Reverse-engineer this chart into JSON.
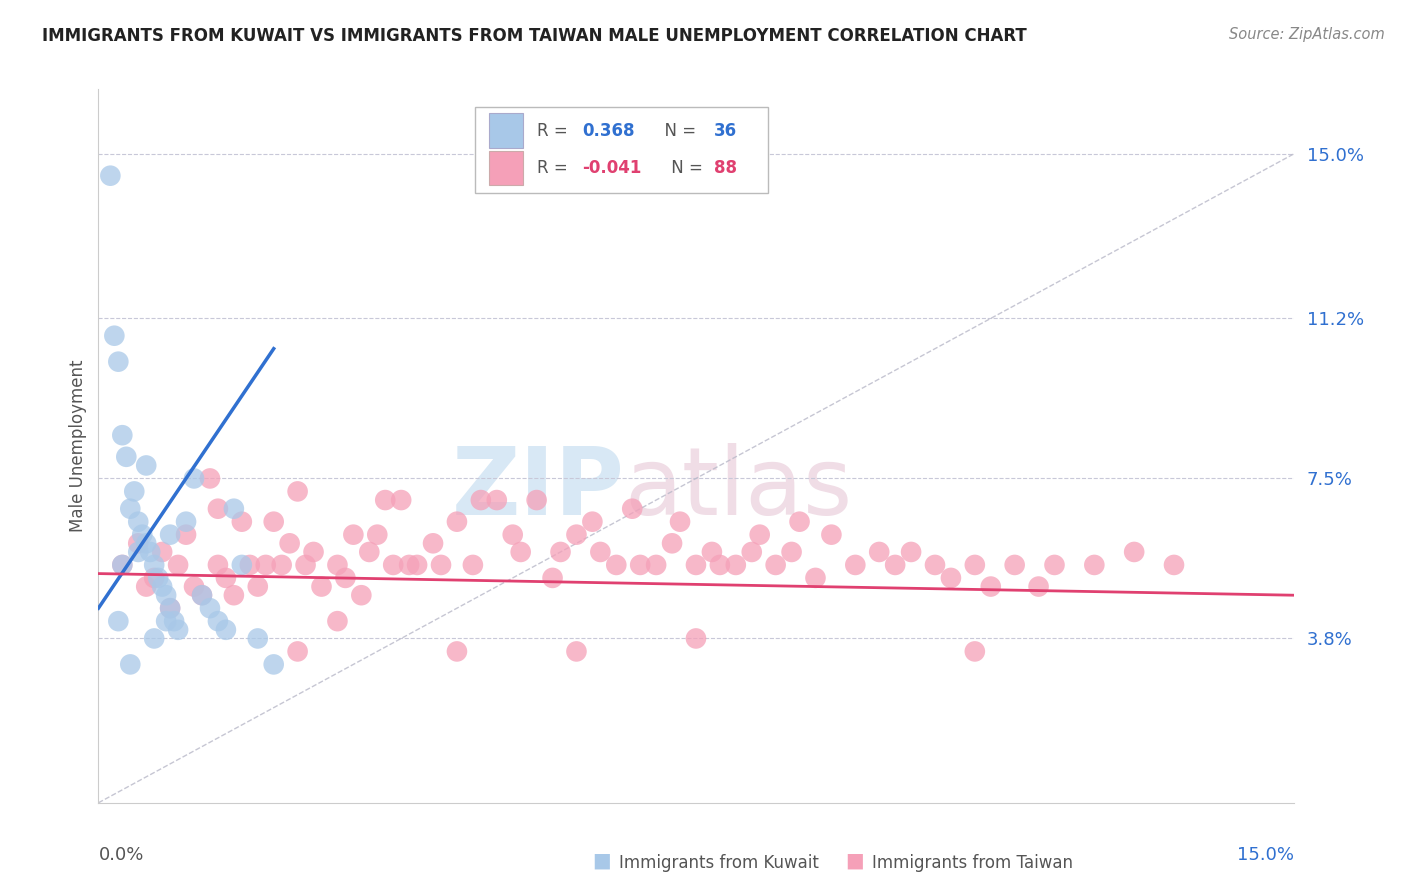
{
  "title": "IMMIGRANTS FROM KUWAIT VS IMMIGRANTS FROM TAIWAN MALE UNEMPLOYMENT CORRELATION CHART",
  "source": "Source: ZipAtlas.com",
  "ylabel": "Male Unemployment",
  "y_tick_values": [
    3.8,
    7.5,
    11.2,
    15.0
  ],
  "x_range": [
    0,
    15
  ],
  "y_range": [
    0,
    16.5
  ],
  "legend_r_kuwait": "0.368",
  "legend_n_kuwait": "36",
  "legend_r_taiwan": "-0.041",
  "legend_n_taiwan": "88",
  "kuwait_color": "#a8c8e8",
  "taiwan_color": "#f5a0b8",
  "kuwait_line_color": "#3070d0",
  "taiwan_line_color": "#e04070",
  "diag_color": "#b8b8c8",
  "background_color": "#ffffff",
  "grid_color": "#c8c8d8",
  "kuwait_scatter_x": [
    0.15,
    0.2,
    0.25,
    0.3,
    0.35,
    0.4,
    0.45,
    0.5,
    0.55,
    0.6,
    0.65,
    0.7,
    0.75,
    0.8,
    0.85,
    0.9,
    0.95,
    1.0,
    1.1,
    1.2,
    1.3,
    1.4,
    1.5,
    1.6,
    1.7,
    1.8,
    2.0,
    2.2,
    0.3,
    0.5,
    0.6,
    0.7,
    0.85,
    0.9,
    0.25,
    0.4
  ],
  "kuwait_scatter_y": [
    14.5,
    10.8,
    10.2,
    8.5,
    8.0,
    6.8,
    7.2,
    6.5,
    6.2,
    6.0,
    5.8,
    5.5,
    5.2,
    5.0,
    4.8,
    4.5,
    4.2,
    4.0,
    6.5,
    7.5,
    4.8,
    4.5,
    4.2,
    4.0,
    6.8,
    5.5,
    3.8,
    3.2,
    5.5,
    5.8,
    7.8,
    3.8,
    4.2,
    6.2,
    4.2,
    3.2
  ],
  "taiwan_scatter_x": [
    0.3,
    0.5,
    0.6,
    0.8,
    0.9,
    1.0,
    1.1,
    1.2,
    1.4,
    1.5,
    1.6,
    1.7,
    1.8,
    1.9,
    2.0,
    2.1,
    2.2,
    2.3,
    2.4,
    2.5,
    2.6,
    2.7,
    2.8,
    3.0,
    3.1,
    3.2,
    3.3,
    3.4,
    3.5,
    3.6,
    3.7,
    3.8,
    3.9,
    4.0,
    4.2,
    4.3,
    4.5,
    4.7,
    4.8,
    5.0,
    5.2,
    5.3,
    5.5,
    5.7,
    5.8,
    6.0,
    6.2,
    6.3,
    6.5,
    6.7,
    6.8,
    7.0,
    7.2,
    7.3,
    7.5,
    7.7,
    7.8,
    8.0,
    8.2,
    8.3,
    8.5,
    8.7,
    8.8,
    9.0,
    9.2,
    9.5,
    9.8,
    10.0,
    10.2,
    10.5,
    10.7,
    11.0,
    11.2,
    11.5,
    11.8,
    12.0,
    12.5,
    13.0,
    13.5,
    0.7,
    1.3,
    1.5,
    2.5,
    3.0,
    4.5,
    6.0,
    7.5,
    11.0
  ],
  "taiwan_scatter_y": [
    5.5,
    6.0,
    5.0,
    5.8,
    4.5,
    5.5,
    6.2,
    5.0,
    7.5,
    6.8,
    5.2,
    4.8,
    6.5,
    5.5,
    5.0,
    5.5,
    6.5,
    5.5,
    6.0,
    7.2,
    5.5,
    5.8,
    5.0,
    5.5,
    5.2,
    6.2,
    4.8,
    5.8,
    6.2,
    7.0,
    5.5,
    7.0,
    5.5,
    5.5,
    6.0,
    5.5,
    6.5,
    5.5,
    7.0,
    7.0,
    6.2,
    5.8,
    7.0,
    5.2,
    5.8,
    6.2,
    6.5,
    5.8,
    5.5,
    6.8,
    5.5,
    5.5,
    6.0,
    6.5,
    5.5,
    5.8,
    5.5,
    5.5,
    5.8,
    6.2,
    5.5,
    5.8,
    6.5,
    5.2,
    6.2,
    5.5,
    5.8,
    5.5,
    5.8,
    5.5,
    5.2,
    5.5,
    5.0,
    5.5,
    5.0,
    5.5,
    5.5,
    5.8,
    5.5,
    5.2,
    4.8,
    5.5,
    3.5,
    4.2,
    3.5,
    3.5,
    3.8,
    3.5
  ]
}
